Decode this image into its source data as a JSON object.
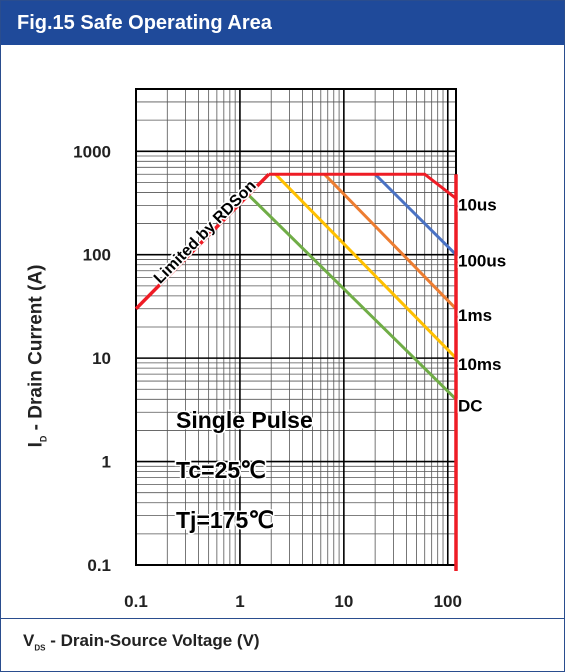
{
  "header": {
    "title": "Fig.15 Safe Operating Area"
  },
  "chart_data": {
    "type": "line",
    "title": "Fig.15 Safe Operating Area",
    "xlabel_main": "V",
    "xlabel_sub": "DS",
    "xlabel_rest": " - Drain-Source Voltage (V)",
    "ylabel_main": "I",
    "ylabel_sub": "D",
    "ylabel_rest": " - Drain Current  (A)",
    "xscale": "log",
    "yscale": "log",
    "xlim": [
      0.1,
      120
    ],
    "ylim": [
      0.1,
      4000
    ],
    "x_ticks": [
      0.1,
      1,
      10,
      100
    ],
    "x_tick_labels": [
      "0.1",
      "1",
      "10",
      "100"
    ],
    "y_ticks": [
      0.1,
      1,
      10,
      100,
      1000
    ],
    "y_tick_labels": [
      "0.1",
      "1",
      "10",
      "100",
      "1000"
    ],
    "grid": true,
    "limit_line": {
      "label": "Limited by RDSon",
      "color": "#ee1c25",
      "points": [
        [
          0.1,
          30
        ],
        [
          1.9,
          600
        ]
      ]
    },
    "series": [
      {
        "name": "10us",
        "color": "#ee1c25",
        "points": [
          [
            1.9,
            600
          ],
          [
            60,
            600
          ],
          [
            120,
            350
          ]
        ]
      },
      {
        "name": "100us",
        "color": "#4a72c4",
        "points": [
          [
            20,
            600
          ],
          [
            120,
            100
          ]
        ]
      },
      {
        "name": "1ms",
        "color": "#ed7d31",
        "points": [
          [
            6.5,
            600
          ],
          [
            120,
            30
          ]
        ]
      },
      {
        "name": "10ms",
        "color": "#ffc000",
        "points": [
          [
            2.2,
            600
          ],
          [
            120,
            10
          ]
        ]
      },
      {
        "name": "DC",
        "color": "#70ad47",
        "points": [
          [
            1.2,
            380
          ],
          [
            120,
            4
          ]
        ]
      }
    ],
    "voltage_limit": {
      "color": "#ee1c25",
      "x": 120
    },
    "annotations": [
      "Single Pulse",
      "Tc=25℃",
      "Tj=175℃"
    ]
  }
}
